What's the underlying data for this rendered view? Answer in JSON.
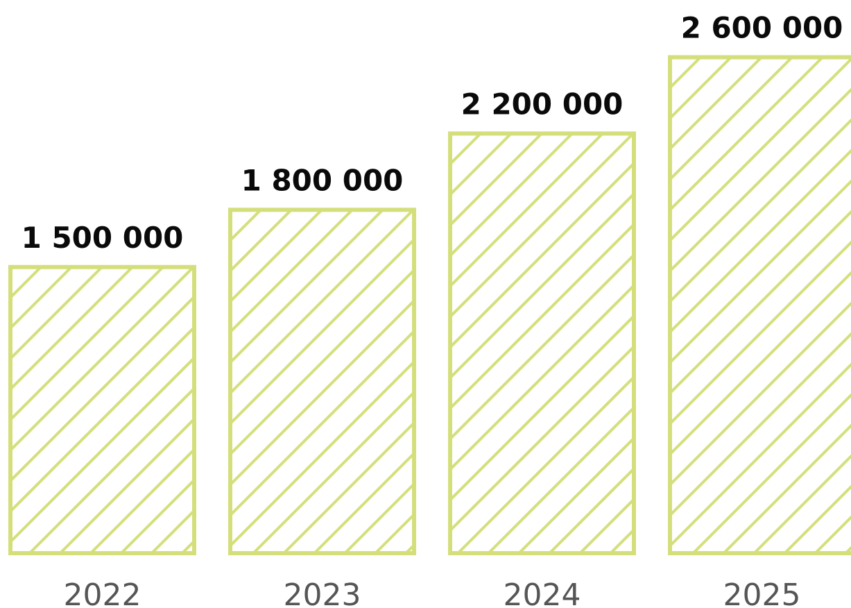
{
  "chart_data": {
    "type": "bar",
    "title": "",
    "xlabel": "",
    "ylabel": "",
    "categories": [
      "2022",
      "2023",
      "2024",
      "2025"
    ],
    "values": [
      1500000,
      1800000,
      2200000,
      2600000
    ],
    "value_labels": [
      "1 500 000",
      "1 800 000",
      "2 200 000",
      "2 600 000"
    ],
    "ylim": [
      0,
      2900000
    ],
    "grid": false,
    "legend": "none",
    "bar_fill": "diagonal-hatch",
    "colors": {
      "bar": "#d4df7c",
      "value_text": "#0a0a0a",
      "category_text": "#555555",
      "background": "#ffffff"
    }
  }
}
